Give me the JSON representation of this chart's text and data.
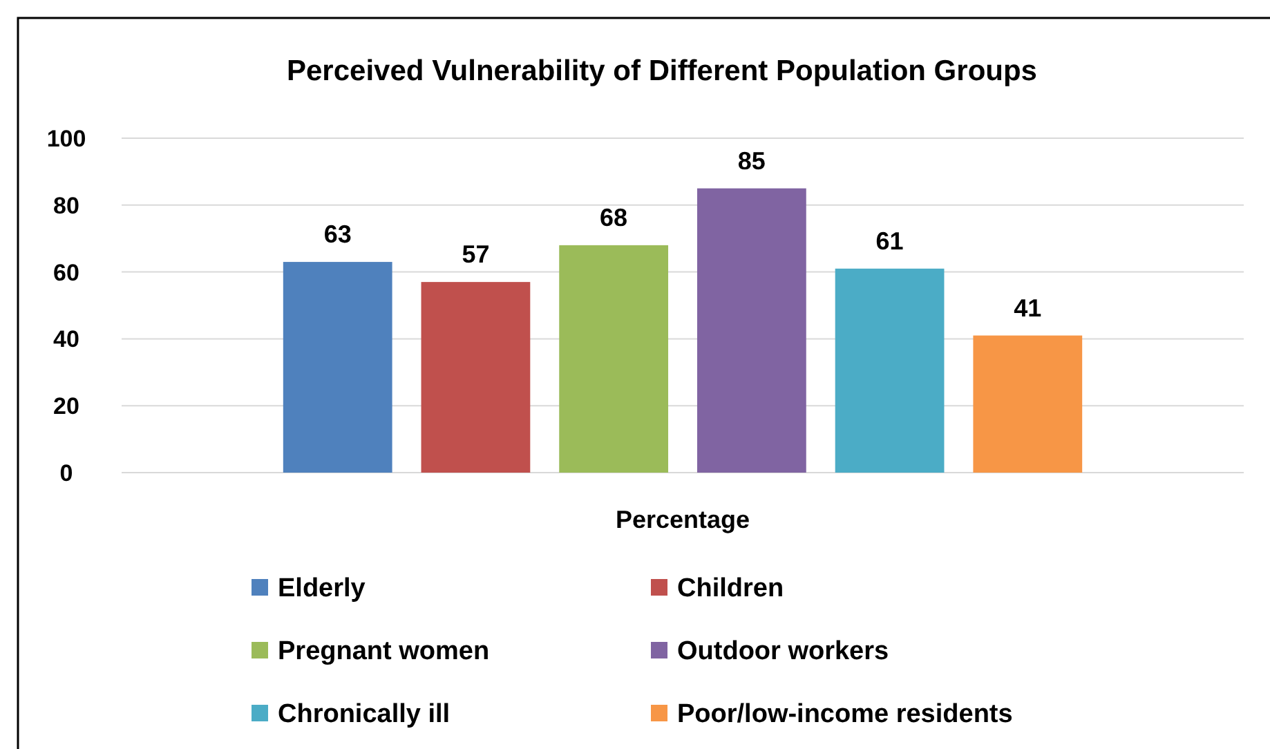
{
  "chart_data": {
    "type": "bar",
    "title": "Perceived Vulnerability of Different Population Groups",
    "categories": [
      "Percentage"
    ],
    "series": [
      {
        "name": "Elderly",
        "color": "#4f81bd",
        "values": [
          63
        ]
      },
      {
        "name": "Children",
        "color": "#c0504d",
        "values": [
          57
        ]
      },
      {
        "name": "Pregnant women",
        "color": "#9bbb59",
        "values": [
          68
        ]
      },
      {
        "name": "Outdoor workers",
        "color": "#8064a2",
        "values": [
          85
        ]
      },
      {
        "name": "Chronically ill",
        "color": "#4bacc6",
        "values": [
          61
        ]
      },
      {
        "name": "Poor/low-income residents",
        "color": "#f79646",
        "values": [
          41
        ]
      }
    ],
    "ylim": [
      0,
      100
    ],
    "yticks": [
      0,
      20,
      40,
      60,
      80,
      100
    ],
    "grid": "y",
    "legend": "bottom",
    "data_labels": true
  }
}
